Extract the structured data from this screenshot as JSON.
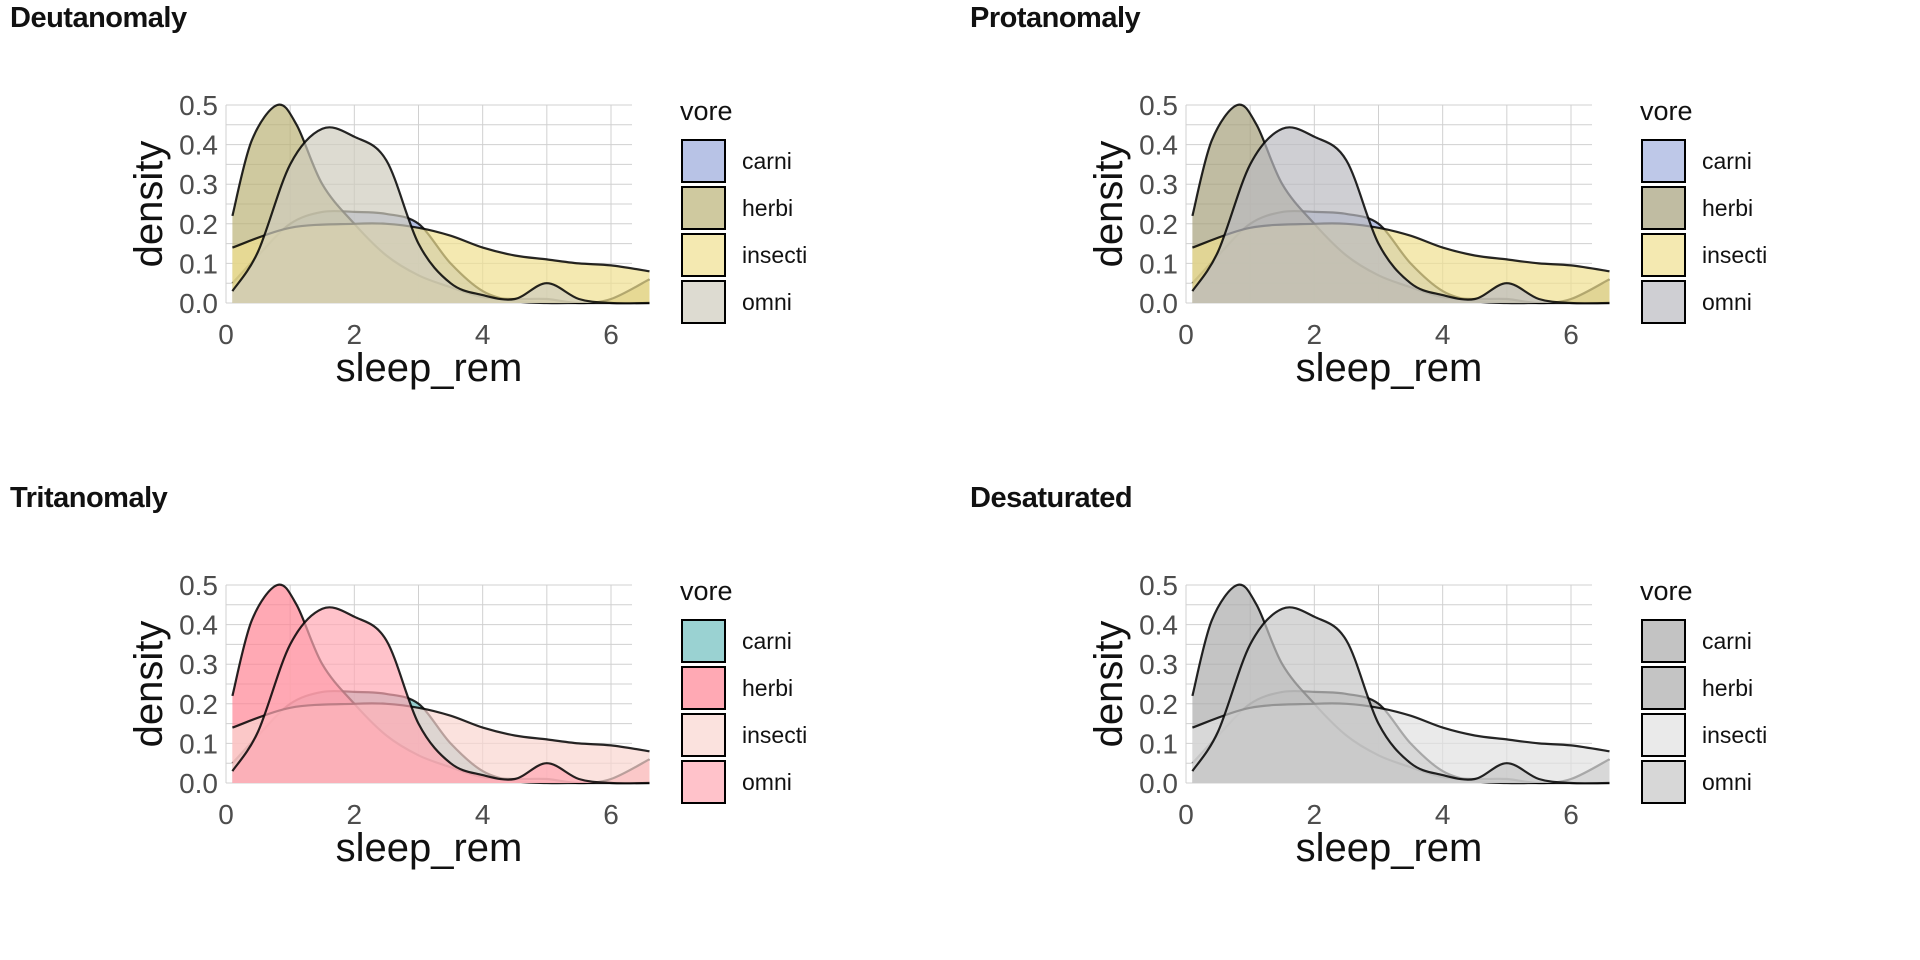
{
  "chart_data": [
    {
      "type": "area",
      "title": "Deutanomaly",
      "xlabel": "sleep_rem",
      "ylabel": "density",
      "xlim": [
        0,
        7
      ],
      "ylim": [
        0,
        0.5
      ],
      "xticks": [
        "0",
        "2",
        "4",
        "6"
      ],
      "yticks": [
        "0.0",
        "0.1",
        "0.2",
        "0.3",
        "0.4",
        "0.5"
      ],
      "grid": true,
      "legend": {
        "title": "vore",
        "placement": "right"
      },
      "series": [
        {
          "name": "carni",
          "color": "#9AA9DC",
          "x": [
            0.1,
            0.5,
            1.0,
            1.5,
            2.0,
            2.5,
            3.0,
            3.5,
            4.0,
            4.5,
            5.0,
            5.5,
            6.0,
            6.6
          ],
          "y": [
            0.05,
            0.12,
            0.2,
            0.23,
            0.23,
            0.225,
            0.2,
            0.1,
            0.03,
            0.005,
            0.0,
            0.0,
            0.0,
            0.0
          ]
        },
        {
          "name": "herbi",
          "color": "#BAB276",
          "x": [
            0.1,
            0.4,
            0.8,
            1.1,
            1.5,
            2.0,
            2.5,
            3.0,
            3.5,
            4.0,
            4.5,
            5.0,
            5.5,
            6.0,
            6.6
          ],
          "y": [
            0.22,
            0.41,
            0.5,
            0.45,
            0.3,
            0.2,
            0.12,
            0.07,
            0.04,
            0.015,
            0.01,
            0.01,
            0.0,
            0.01,
            0.06
          ]
        },
        {
          "name": "insecti",
          "color": "#F0E090",
          "x": [
            0.1,
            1.0,
            2.0,
            2.5,
            3.0,
            3.5,
            4.0,
            4.5,
            5.0,
            5.5,
            6.0,
            6.6
          ],
          "y": [
            0.14,
            0.19,
            0.2,
            0.2,
            0.19,
            0.17,
            0.14,
            0.12,
            0.11,
            0.1,
            0.095,
            0.08
          ]
        },
        {
          "name": "omni",
          "color": "#CECCBD",
          "x": [
            0.1,
            0.5,
            1.0,
            1.5,
            2.0,
            2.5,
            3.0,
            3.5,
            4.0,
            4.5,
            5.0,
            5.5,
            6.0,
            6.6
          ],
          "y": [
            0.03,
            0.13,
            0.35,
            0.44,
            0.42,
            0.36,
            0.15,
            0.05,
            0.02,
            0.01,
            0.05,
            0.01,
            0.0,
            0.0
          ]
        }
      ]
    },
    {
      "type": "area",
      "title": "Protanomaly",
      "xlabel": "sleep_rem",
      "ylabel": "density",
      "xlim": [
        0,
        7
      ],
      "ylim": [
        0,
        0.5
      ],
      "xticks": [
        "0",
        "2",
        "4",
        "6"
      ],
      "yticks": [
        "0.0",
        "0.1",
        "0.2",
        "0.3",
        "0.4",
        "0.5"
      ],
      "grid": true,
      "legend": {
        "title": "vore",
        "placement": "right"
      },
      "series": [
        {
          "name": "carni",
          "color": "#A3B1DE",
          "x": [
            0.1,
            0.5,
            1.0,
            1.5,
            2.0,
            2.5,
            3.0,
            3.5,
            4.0,
            4.5,
            5.0,
            5.5,
            6.0,
            6.6
          ],
          "y": [
            0.05,
            0.12,
            0.2,
            0.23,
            0.23,
            0.225,
            0.2,
            0.1,
            0.03,
            0.005,
            0.0,
            0.0,
            0.0,
            0.0
          ]
        },
        {
          "name": "herbi",
          "color": "#A59F7A",
          "x": [
            0.1,
            0.4,
            0.8,
            1.1,
            1.5,
            2.0,
            2.5,
            3.0,
            3.5,
            4.0,
            4.5,
            5.0,
            5.5,
            6.0,
            6.6
          ],
          "y": [
            0.22,
            0.41,
            0.5,
            0.45,
            0.3,
            0.2,
            0.12,
            0.07,
            0.04,
            0.015,
            0.01,
            0.01,
            0.0,
            0.01,
            0.06
          ]
        },
        {
          "name": "insecti",
          "color": "#F0E090",
          "x": [
            0.1,
            1.0,
            2.0,
            2.5,
            3.0,
            3.5,
            4.0,
            4.5,
            5.0,
            5.5,
            6.0,
            6.6
          ],
          "y": [
            0.14,
            0.19,
            0.2,
            0.2,
            0.19,
            0.17,
            0.14,
            0.12,
            0.11,
            0.1,
            0.095,
            0.08
          ]
        },
        {
          "name": "omni",
          "color": "#BBBBC0",
          "x": [
            0.1,
            0.5,
            1.0,
            1.5,
            2.0,
            2.5,
            3.0,
            3.5,
            4.0,
            4.5,
            5.0,
            5.5,
            6.0,
            6.6
          ],
          "y": [
            0.03,
            0.13,
            0.35,
            0.44,
            0.42,
            0.36,
            0.15,
            0.05,
            0.02,
            0.01,
            0.05,
            0.01,
            0.0,
            0.0
          ]
        }
      ]
    },
    {
      "type": "area",
      "title": "Tritanomaly",
      "xlabel": "sleep_rem",
      "ylabel": "density",
      "xlim": [
        0,
        7
      ],
      "ylim": [
        0,
        0.5
      ],
      "xticks": [
        "0",
        "2",
        "4",
        "6"
      ],
      "yticks": [
        "0.0",
        "0.1",
        "0.2",
        "0.3",
        "0.4",
        "0.5"
      ],
      "grid": true,
      "legend": {
        "title": "vore",
        "placement": "right"
      },
      "series": [
        {
          "name": "carni",
          "color": "#6FBFBF",
          "x": [
            0.1,
            0.5,
            1.0,
            1.5,
            2.0,
            2.5,
            3.0,
            3.5,
            4.0,
            4.5,
            5.0,
            5.5,
            6.0,
            6.6
          ],
          "y": [
            0.05,
            0.12,
            0.2,
            0.23,
            0.23,
            0.225,
            0.2,
            0.1,
            0.03,
            0.005,
            0.0,
            0.0,
            0.0,
            0.0
          ]
        },
        {
          "name": "herbi",
          "color": "#FF8494",
          "x": [
            0.1,
            0.4,
            0.8,
            1.1,
            1.5,
            2.0,
            2.5,
            3.0,
            3.5,
            4.0,
            4.5,
            5.0,
            5.5,
            6.0,
            6.6
          ],
          "y": [
            0.22,
            0.41,
            0.5,
            0.45,
            0.3,
            0.2,
            0.12,
            0.07,
            0.04,
            0.015,
            0.01,
            0.01,
            0.0,
            0.01,
            0.06
          ]
        },
        {
          "name": "insecti",
          "color": "#F9D6D0",
          "x": [
            0.1,
            1.0,
            2.0,
            2.5,
            3.0,
            3.5,
            4.0,
            4.5,
            5.0,
            5.5,
            6.0,
            6.6
          ],
          "y": [
            0.14,
            0.19,
            0.2,
            0.2,
            0.19,
            0.17,
            0.14,
            0.12,
            0.11,
            0.1,
            0.095,
            0.08
          ]
        },
        {
          "name": "omni",
          "color": "#FFA8B4",
          "x": [
            0.1,
            0.5,
            1.0,
            1.5,
            2.0,
            2.5,
            3.0,
            3.5,
            4.0,
            4.5,
            5.0,
            5.5,
            6.0,
            6.6
          ],
          "y": [
            0.03,
            0.13,
            0.35,
            0.44,
            0.42,
            0.36,
            0.15,
            0.05,
            0.02,
            0.01,
            0.05,
            0.01,
            0.0,
            0.0
          ]
        }
      ]
    },
    {
      "type": "area",
      "title": "Desaturated",
      "xlabel": "sleep_rem",
      "ylabel": "density",
      "xlim": [
        0,
        7
      ],
      "ylim": [
        0,
        0.5
      ],
      "xticks": [
        "0",
        "2",
        "4",
        "6"
      ],
      "yticks": [
        "0.0",
        "0.1",
        "0.2",
        "0.3",
        "0.4",
        "0.5"
      ],
      "grid": true,
      "legend": {
        "title": "vore",
        "placement": "right"
      },
      "series": [
        {
          "name": "carni",
          "color": "#AAAAAA",
          "x": [
            0.1,
            0.5,
            1.0,
            1.5,
            2.0,
            2.5,
            3.0,
            3.5,
            4.0,
            4.5,
            5.0,
            5.5,
            6.0,
            6.6
          ],
          "y": [
            0.05,
            0.12,
            0.2,
            0.23,
            0.23,
            0.225,
            0.2,
            0.1,
            0.03,
            0.005,
            0.0,
            0.0,
            0.0,
            0.0
          ]
        },
        {
          "name": "herbi",
          "color": "#ABABAB",
          "x": [
            0.1,
            0.4,
            0.8,
            1.1,
            1.5,
            2.0,
            2.5,
            3.0,
            3.5,
            4.0,
            4.5,
            5.0,
            5.5,
            6.0,
            6.6
          ],
          "y": [
            0.22,
            0.41,
            0.5,
            0.45,
            0.3,
            0.2,
            0.12,
            0.07,
            0.04,
            0.015,
            0.01,
            0.01,
            0.0,
            0.01,
            0.06
          ]
        },
        {
          "name": "insecti",
          "color": "#E1E1E1",
          "x": [
            0.1,
            1.0,
            2.0,
            2.5,
            3.0,
            3.5,
            4.0,
            4.5,
            5.0,
            5.5,
            6.0,
            6.6
          ],
          "y": [
            0.14,
            0.19,
            0.2,
            0.2,
            0.19,
            0.17,
            0.14,
            0.12,
            0.11,
            0.1,
            0.095,
            0.08
          ]
        },
        {
          "name": "omni",
          "color": "#C6C6C6",
          "x": [
            0.1,
            0.5,
            1.0,
            1.5,
            2.0,
            2.5,
            3.0,
            3.5,
            4.0,
            4.5,
            5.0,
            5.5,
            6.0,
            6.6
          ],
          "y": [
            0.03,
            0.13,
            0.35,
            0.44,
            0.42,
            0.36,
            0.15,
            0.05,
            0.02,
            0.01,
            0.05,
            0.01,
            0.0,
            0.0
          ]
        }
      ]
    }
  ]
}
